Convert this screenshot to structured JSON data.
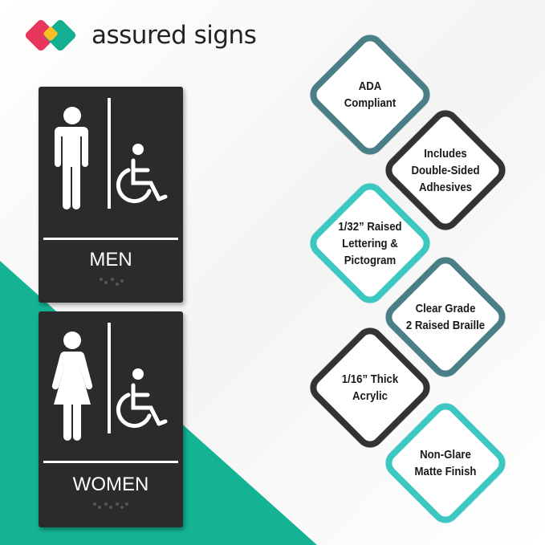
{
  "brand": {
    "name": "assured signs",
    "colors": {
      "red": "#e8365d",
      "yellow": "#fbbf24",
      "teal": "#14ae90"
    }
  },
  "signs": [
    {
      "label": "MEN",
      "pictogram": "man-icon",
      "accessibility": "wheelchair-icon",
      "braille": "braille-dots"
    },
    {
      "label": "WOMEN",
      "pictogram": "woman-icon",
      "accessibility": "wheelchair-icon",
      "braille": "braille-dots"
    }
  ],
  "features": [
    {
      "text": "ADA\nCompliant",
      "color": "#4b7f87"
    },
    {
      "text": "Includes\nDouble-Sided\nAdhesives",
      "color": "#333333"
    },
    {
      "text": "1/32” Raised\nLettering &\nPictogram",
      "color": "#3cc7c1"
    },
    {
      "text": "Clear Grade\n2 Raised Braille",
      "color": "#4b7f87"
    },
    {
      "text": "1/16” Thick\nAcrylic",
      "color": "#333333"
    },
    {
      "text": "Non-Glare\nMatte Finish",
      "color": "#3cc7c1"
    }
  ],
  "background_accent": "#14b394"
}
